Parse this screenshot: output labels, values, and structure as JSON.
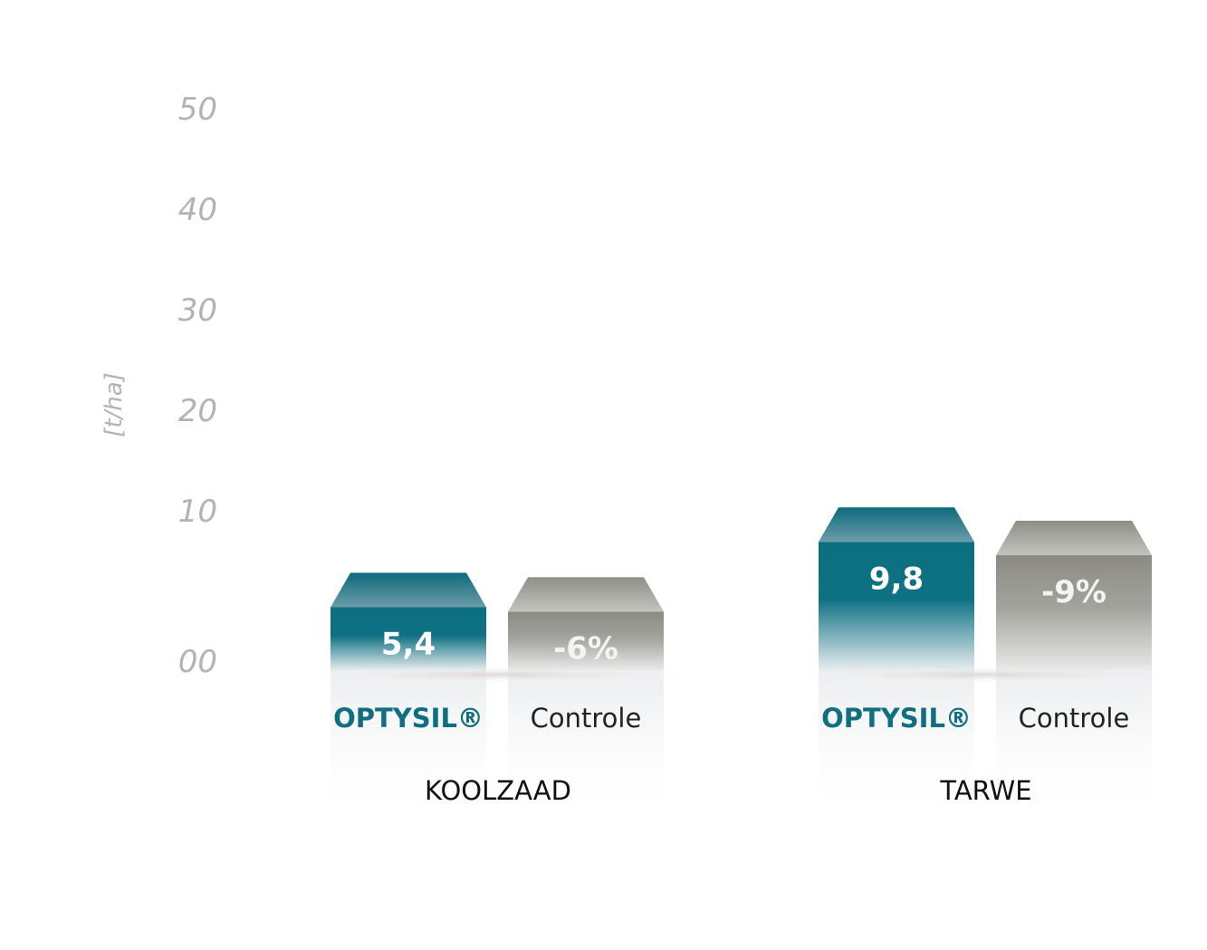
{
  "chart_data": {
    "type": "bar",
    "ylabel": "[t/ha]",
    "ylim": [
      0,
      50
    ],
    "yticks": [
      {
        "value": 0,
        "label": "00"
      },
      {
        "value": 10,
        "label": "10"
      },
      {
        "value": 20,
        "label": "20"
      },
      {
        "value": 30,
        "label": "30"
      },
      {
        "value": 40,
        "label": "40"
      },
      {
        "value": 50,
        "label": "50"
      }
    ],
    "categories": [
      "KOOLZAAD",
      "TARWE"
    ],
    "series": [
      {
        "name": "OPTYSIL®",
        "values": [
          5.4,
          9.8
        ],
        "labels": [
          "5,4",
          "9,8"
        ],
        "color": "#0f6e80"
      },
      {
        "name": "Controle",
        "values": [
          5.1,
          8.9
        ],
        "labels": [
          "-6%",
          "-9%"
        ],
        "color": "#8c8c85"
      }
    ],
    "grid": false,
    "legend": "none"
  }
}
